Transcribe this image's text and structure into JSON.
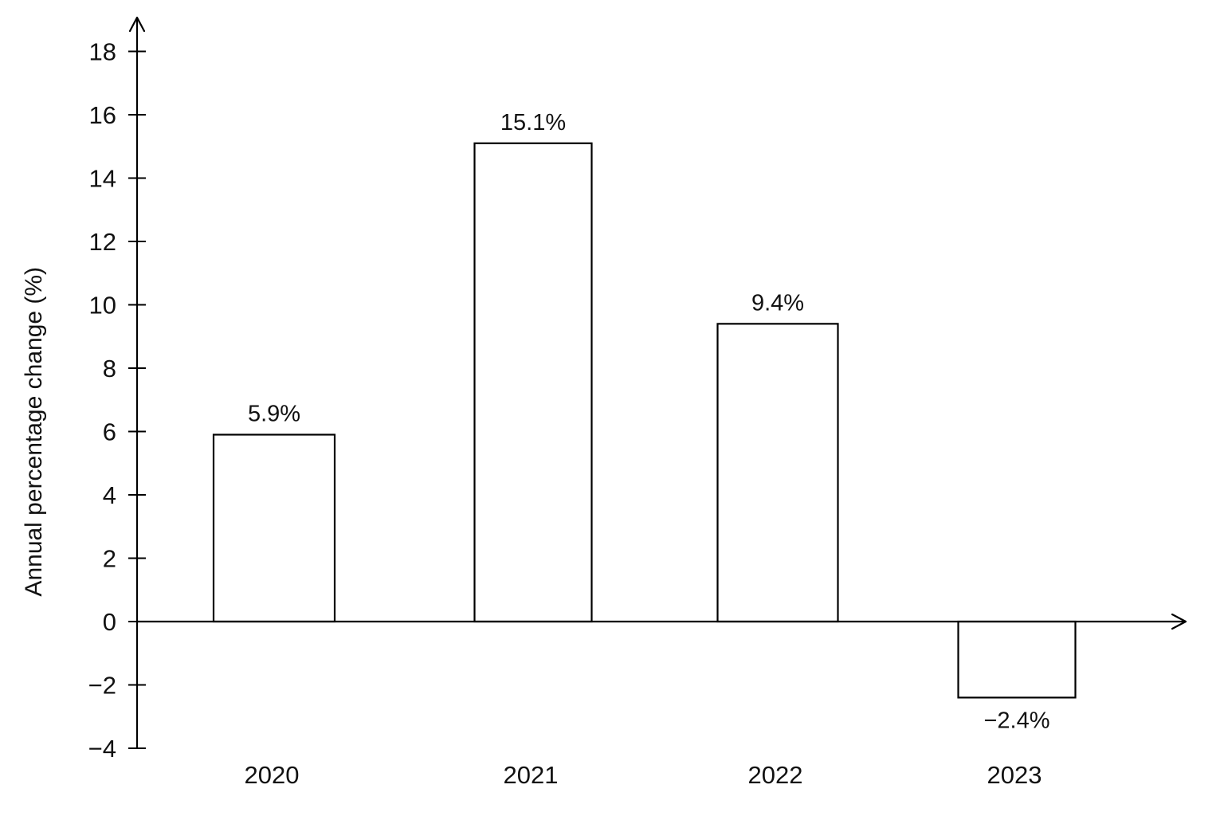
{
  "chart_data": {
    "type": "bar",
    "title": "",
    "xlabel": "",
    "ylabel": "Annual percentage change (%)",
    "categories": [
      "2020",
      "2021",
      "2022",
      "2023"
    ],
    "values": [
      5.9,
      15.1,
      9.4,
      -2.4
    ],
    "value_labels": [
      "5.9%",
      "15.1%",
      "9.4%",
      "−2.4%"
    ],
    "y_ticks": [
      -4,
      -2,
      0,
      2,
      4,
      6,
      8,
      10,
      12,
      14,
      16,
      18
    ],
    "y_tick_labels": [
      "−4",
      "−2",
      "0",
      "2",
      "4",
      "6",
      "8",
      "10",
      "12",
      "14",
      "16",
      "18"
    ],
    "ylim": [
      -4,
      19
    ],
    "grid": false,
    "legend": "none",
    "colors": {
      "bar_fill": "#ffffff",
      "bar_stroke": "#000000",
      "axis": "#000000",
      "text": "#111111"
    }
  }
}
